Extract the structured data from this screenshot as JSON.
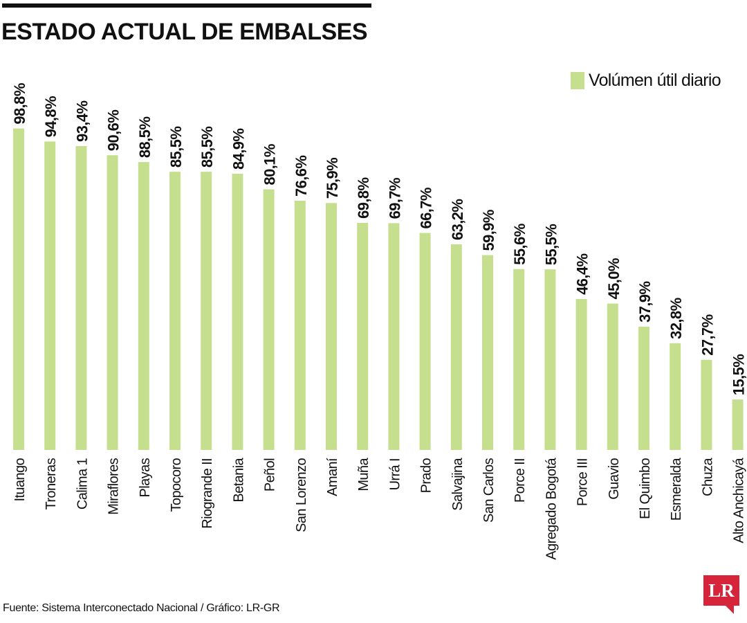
{
  "title": "ESTADO ACTUAL DE EMBALSES",
  "source": "Fuente: Sistema Interconectado Nacional / Gráfico: LR-GR",
  "logo_text": "LR",
  "colors": {
    "bar": "#c5df8f",
    "text": "#111111",
    "logo": "#d6243a"
  },
  "chart_data": {
    "type": "bar",
    "title": "ESTADO ACTUAL DE EMBALSES",
    "legend": "top-right",
    "ylim": [
      0,
      100
    ],
    "grid": false,
    "categories": [
      "Ituango",
      "Troneras",
      "Calima 1",
      "Miraflores",
      "Playas",
      "Topocoro",
      "Riogrande II",
      "Betania",
      "Peñol",
      "San Lorenzo",
      "Amaní",
      "Muña",
      "Urrá I",
      "Prado",
      "Salvajina",
      "San Carlos",
      "Porce II",
      "Agregado Bogotá",
      "Porce III",
      "Guavio",
      "El Quimbo",
      "Esmeralda",
      "Chuza",
      "Alto Anchicayá"
    ],
    "series": [
      {
        "name": "Volúmen útil diario",
        "values": [
          98.8,
          94.8,
          93.4,
          90.6,
          88.5,
          85.5,
          85.5,
          84.9,
          80.1,
          76.6,
          75.9,
          69.8,
          69.7,
          66.7,
          63.2,
          59.9,
          55.6,
          55.5,
          46.4,
          45.0,
          37.9,
          32.8,
          27.7,
          15.5
        ],
        "labels": [
          "98,8%",
          "94,8%",
          "93,4%",
          "90,6%",
          "88,5%",
          "85,5%",
          "85,5%",
          "84,9%",
          "80,1%",
          "76,6%",
          "75,9%",
          "69,8%",
          "69,7%",
          "66,7%",
          "63,2%",
          "59,9%",
          "55,6%",
          "55,5%",
          "46,4%",
          "45,0%",
          "37,9%",
          "32,8%",
          "27,7%",
          "15,5%"
        ]
      }
    ]
  }
}
